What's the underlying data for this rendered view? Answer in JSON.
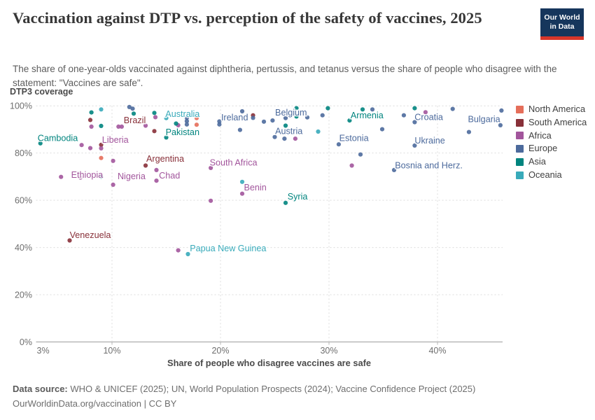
{
  "header": {
    "title": "Vaccination against DTP vs. perception of the safety of vaccines, 2025",
    "subtitle": "The share of one-year-olds vaccinated against diphtheria, pertussis, and tetanus versus the share of people who disagree with the statement: \"Vaccines are safe\".",
    "logo_line1": "Our World",
    "logo_line2": "in Data"
  },
  "footer": {
    "source_label": "Data source:",
    "source_text": " WHO & UNICEF (2025); UN, World Population Prospects (2024); Vaccine Confidence Project (2025)",
    "line2": "OurWorldinData.org/vaccination | CC BY"
  },
  "chart_data": {
    "type": "scatter",
    "title": "Vaccination against DTP vs. perception of the safety of vaccines, 2025",
    "xlabel": "Share of people who disagree vaccines are safe",
    "ylabel": "DTP3 coverage",
    "xlim": [
      3,
      46
    ],
    "ylim": [
      0,
      100
    ],
    "x_ticks": [
      3,
      10,
      20,
      30,
      40
    ],
    "y_ticks": [
      0,
      20,
      40,
      60,
      80,
      100
    ],
    "tick_suffix": "%",
    "grid": true,
    "legend_position": "right",
    "legend": [
      {
        "name": "North America",
        "color": "#e56e5a"
      },
      {
        "name": "South America",
        "color": "#883039"
      },
      {
        "name": "Africa",
        "color": "#a2559c"
      },
      {
        "name": "Europe",
        "color": "#4c6a9c"
      },
      {
        "name": "Asia",
        "color": "#00847e"
      },
      {
        "name": "Oceania",
        "color": "#38aaba"
      }
    ],
    "series": [
      {
        "name": "North America",
        "color": "#e56e5a",
        "points": [
          [
            17.8,
            94.8
          ],
          [
            17.8,
            92.0
          ],
          [
            9.0,
            77.9
          ]
        ]
      },
      {
        "name": "South America",
        "color": "#883039",
        "points": [
          [
            8.0,
            94.0
          ],
          [
            9.0,
            83.5
          ],
          [
            13.9,
            89.3
          ],
          [
            23.0,
            96.0
          ],
          [
            13.1,
            74.7
          ],
          [
            6.1,
            43.0
          ]
        ]
      },
      {
        "name": "Africa",
        "color": "#a2559c",
        "points": [
          [
            7.2,
            83.4
          ],
          [
            8.0,
            82.1
          ],
          [
            8.1,
            91.2
          ],
          [
            9.0,
            82.0
          ],
          [
            10.6,
            91.2
          ],
          [
            10.9,
            91.2
          ],
          [
            13.1,
            91.6
          ],
          [
            14.0,
            95.2
          ],
          [
            16.1,
            91.8
          ],
          [
            10.1,
            76.7
          ],
          [
            10.1,
            66.6
          ],
          [
            5.3,
            69.9
          ],
          [
            7.1,
            69.6
          ],
          [
            14.1,
            72.8
          ],
          [
            14.1,
            68.3
          ],
          [
            19.1,
            73.7
          ],
          [
            19.1,
            59.8
          ],
          [
            22.0,
            62.8
          ],
          [
            16.1,
            38.8
          ],
          [
            26.9,
            86.1
          ],
          [
            32.1,
            74.7
          ],
          [
            38.9,
            97.3
          ]
        ]
      },
      {
        "name": "Europe",
        "color": "#4c6a9c",
        "points": [
          [
            11.6,
            99.5
          ],
          [
            11.9,
            98.8
          ],
          [
            16.9,
            94.9
          ],
          [
            16.9,
            93.5
          ],
          [
            16.9,
            92.1
          ],
          [
            19.9,
            93.4
          ],
          [
            19.9,
            92.1
          ],
          [
            22.0,
            97.7
          ],
          [
            23.0,
            94.9
          ],
          [
            21.8,
            89.8
          ],
          [
            24.0,
            93.3
          ],
          [
            24.8,
            93.8
          ],
          [
            26.0,
            94.8
          ],
          [
            28.0,
            95.1
          ],
          [
            29.4,
            96.0
          ],
          [
            25.0,
            86.8
          ],
          [
            25.9,
            86.1
          ],
          [
            30.9,
            83.7
          ],
          [
            32.9,
            79.4
          ],
          [
            34.0,
            98.5
          ],
          [
            34.9,
            90.1
          ],
          [
            36.9,
            96.0
          ],
          [
            37.9,
            93.1
          ],
          [
            37.9,
            83.2
          ],
          [
            36.0,
            72.8
          ],
          [
            41.4,
            98.7
          ],
          [
            42.9,
            88.9
          ],
          [
            45.9,
            98.0
          ],
          [
            45.8,
            91.8
          ]
        ]
      },
      {
        "name": "Asia",
        "color": "#00847e",
        "points": [
          [
            3.4,
            84.1
          ],
          [
            8.1,
            97.2
          ],
          [
            9.0,
            91.5
          ],
          [
            12.0,
            96.7
          ],
          [
            13.9,
            97.0
          ],
          [
            15.9,
            92.5
          ],
          [
            15.0,
            86.6
          ],
          [
            26.0,
            91.6
          ],
          [
            27.0,
            99.0
          ],
          [
            27.0,
            95.5
          ],
          [
            29.9,
            99.0
          ],
          [
            31.9,
            93.8
          ],
          [
            33.1,
            98.5
          ],
          [
            37.9,
            99.0
          ],
          [
            26.0,
            58.9
          ],
          [
            9.0,
            70.0
          ]
        ]
      },
      {
        "name": "Oceania",
        "color": "#38aaba",
        "points": [
          [
            15.0,
            94.8
          ],
          [
            9.0,
            98.5
          ],
          [
            29.0,
            89.1
          ],
          [
            22.0,
            67.8
          ],
          [
            17.0,
            37.2
          ]
        ]
      }
    ],
    "annotations": [
      {
        "text": "Cambodia",
        "x": 5.0,
        "y": 86.4,
        "series": "Asia"
      },
      {
        "text": "Liberia",
        "x": 10.3,
        "y": 85.6,
        "series": "Africa"
      },
      {
        "text": "Brazil",
        "x": 12.1,
        "y": 93.9,
        "series": "South America"
      },
      {
        "text": "Australia",
        "x": 16.5,
        "y": 96.6,
        "series": "Oceania"
      },
      {
        "text": "Pakistan",
        "x": 16.5,
        "y": 88.9,
        "series": "Asia"
      },
      {
        "text": "Ireland",
        "x": 21.3,
        "y": 95.1,
        "series": "Europe"
      },
      {
        "text": "Belgium",
        "x": 26.5,
        "y": 97.2,
        "series": "Europe"
      },
      {
        "text": "Austria",
        "x": 26.3,
        "y": 89.3,
        "series": "Europe"
      },
      {
        "text": "Armenia",
        "x": 33.5,
        "y": 96.0,
        "series": "Asia"
      },
      {
        "text": "Croatia",
        "x": 39.2,
        "y": 95.3,
        "series": "Europe"
      },
      {
        "text": "Bulgaria",
        "x": 44.3,
        "y": 94.4,
        "series": "Europe"
      },
      {
        "text": "Estonia",
        "x": 32.3,
        "y": 86.4,
        "series": "Europe"
      },
      {
        "text": "Ukraine",
        "x": 39.3,
        "y": 85.3,
        "series": "Europe"
      },
      {
        "text": "Bosnia and Herz.",
        "x": 39.2,
        "y": 74.8,
        "series": "Europe"
      },
      {
        "text": "Ethiopia",
        "x": 7.7,
        "y": 70.8,
        "series": "Africa"
      },
      {
        "text": "Nigeria",
        "x": 11.8,
        "y": 70.2,
        "series": "Africa"
      },
      {
        "text": "Argentina",
        "x": 14.9,
        "y": 77.6,
        "series": "South America"
      },
      {
        "text": "Chad",
        "x": 15.3,
        "y": 70.5,
        "series": "Africa"
      },
      {
        "text": "South Africa",
        "x": 21.2,
        "y": 76.0,
        "series": "Africa"
      },
      {
        "text": "Benin",
        "x": 23.2,
        "y": 65.4,
        "series": "Africa"
      },
      {
        "text": "Syria",
        "x": 27.1,
        "y": 61.6,
        "series": "Asia"
      },
      {
        "text": "Venezuela",
        "x": 8.0,
        "y": 45.3,
        "series": "South America"
      },
      {
        "text": "Papua New Guinea",
        "x": 20.7,
        "y": 39.6,
        "series": "Oceania"
      }
    ]
  }
}
